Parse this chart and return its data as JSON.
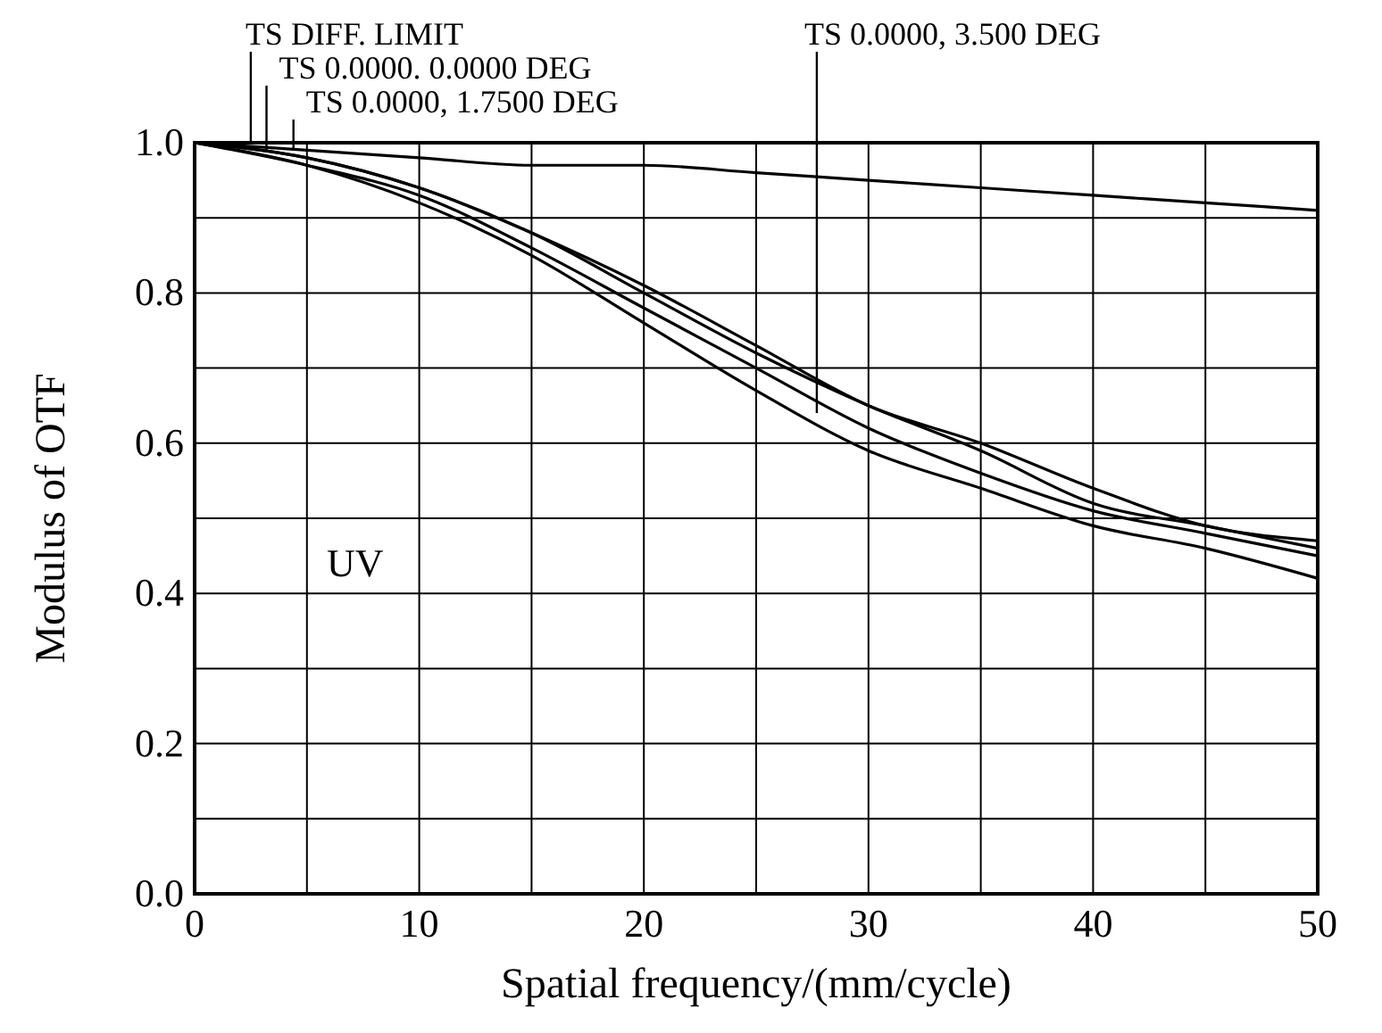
{
  "chart_data": {
    "type": "line",
    "xlabel": "Spatial frequency/(mm/cycle)",
    "ylabel": "Modulus of OTF",
    "x": [
      0,
      5,
      10,
      15,
      20,
      25,
      30,
      35,
      40,
      45,
      50
    ],
    "xlim": [
      0,
      50
    ],
    "ylim": [
      0,
      1
    ],
    "xticks": [
      0,
      {
        "value": 5,
        "label": null
      },
      10,
      {
        "value": 15,
        "label": null
      },
      20,
      {
        "value": 25,
        "label": null
      },
      30,
      {
        "value": 35,
        "label": null
      },
      40,
      {
        "value": 45,
        "label": null
      },
      50
    ],
    "yticks": [
      {
        "value": 0,
        "label": "0.0"
      },
      {
        "value": 0.1,
        "label": null
      },
      0.2,
      {
        "value": 0.3,
        "label": null
      },
      0.4,
      {
        "value": 0.5,
        "label": null
      },
      0.6,
      {
        "value": 0.7,
        "label": null
      },
      0.8,
      {
        "value": 0.9,
        "label": null
      },
      {
        "value": 1,
        "label": "1.0"
      }
    ],
    "grid": true,
    "marker": "none",
    "line_style": "solid",
    "series": [
      {
        "color": "#000000",
        "values": [
          1,
          0.99,
          0.98,
          0.97,
          0.97,
          0.96,
          0.95,
          0.94,
          0.93,
          0.92,
          0.91
        ]
      },
      {
        "color": "#000000",
        "values": [
          1,
          0.98,
          0.94,
          0.88,
          0.81,
          0.73,
          0.65,
          0.6,
          0.54,
          0.49,
          0.47
        ]
      },
      {
        "color": "#000000",
        "values": [
          1,
          0.98,
          0.94,
          0.88,
          0.8,
          0.72,
          0.65,
          0.59,
          0.52,
          0.49,
          0.46
        ]
      },
      {
        "color": "#000000",
        "values": [
          1,
          0.97,
          0.93,
          0.86,
          0.78,
          0.7,
          0.62,
          0.56,
          0.51,
          0.48,
          0.45
        ]
      },
      {
        "color": "#000000",
        "values": [
          1,
          0.97,
          0.92,
          0.85,
          0.76,
          0.67,
          0.59,
          0.54,
          0.49,
          0.46,
          0.42
        ]
      }
    ],
    "annotations": [
      {
        "text": "TS DIFF. LIMIT",
        "x": 2.5,
        "y": 1
      },
      {
        "text": "TS 0.0000. 0.0000 DEG",
        "x": 3.2,
        "y": 0.99
      },
      {
        "text": "TS 0.0000, 1.7500 DEG",
        "x": 4.4,
        "y": 0.99
      },
      {
        "text": "TS 0.0000, 3.500 DEG",
        "x": 27.7,
        "y": 0.64
      },
      "UV"
    ]
  }
}
